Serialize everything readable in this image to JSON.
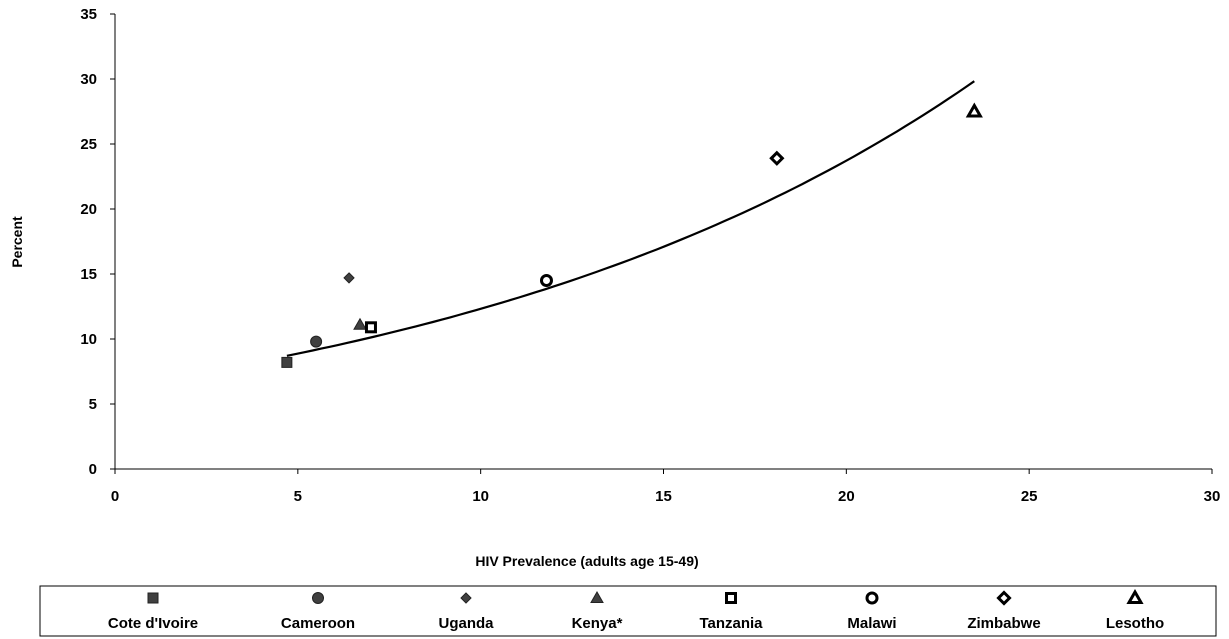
{
  "chart_data": {
    "type": "scatter",
    "title": "",
    "xlabel": "HIV Prevalence (adults age 15-49)",
    "ylabel": "Percent",
    "xlim": [
      0,
      30
    ],
    "ylim": [
      0,
      35
    ],
    "xticks": [
      0,
      5,
      10,
      15,
      20,
      25,
      30
    ],
    "yticks": [
      0,
      5,
      10,
      15,
      20,
      25,
      30,
      35
    ],
    "grid": false,
    "legend_position": "bottom",
    "series": [
      {
        "name": "Cote d'Ivoire",
        "marker": "square",
        "x": 4.7,
        "y": 8.2,
        "color": "#404040",
        "hollow": false
      },
      {
        "name": "Cameroon",
        "marker": "circle",
        "x": 5.5,
        "y": 9.8,
        "color": "#404040",
        "hollow": false
      },
      {
        "name": "Uganda",
        "marker": "diamond",
        "x": 6.4,
        "y": 14.7,
        "color": "#404040",
        "hollow": false
      },
      {
        "name": "Kenya*",
        "marker": "triangle",
        "x": 6.7,
        "y": 11.1,
        "color": "#404040",
        "hollow": false
      },
      {
        "name": "Tanzania",
        "marker": "square",
        "x": 7.0,
        "y": 10.9,
        "color": "#000000",
        "hollow": true
      },
      {
        "name": "Malawi",
        "marker": "circle",
        "x": 11.8,
        "y": 14.5,
        "color": "#000000",
        "hollow": true
      },
      {
        "name": "Zimbabwe",
        "marker": "diamond",
        "x": 18.1,
        "y": 23.9,
        "color": "#000000",
        "hollow": true
      },
      {
        "name": "Lesotho",
        "marker": "triangle",
        "x": 23.5,
        "y": 27.5,
        "color": "#000000",
        "hollow": true
      }
    ],
    "trendline": {
      "type": "exponential",
      "a": 6.4,
      "b": 0.0655,
      "x_start": 4.7,
      "x_end": 23.5
    }
  }
}
